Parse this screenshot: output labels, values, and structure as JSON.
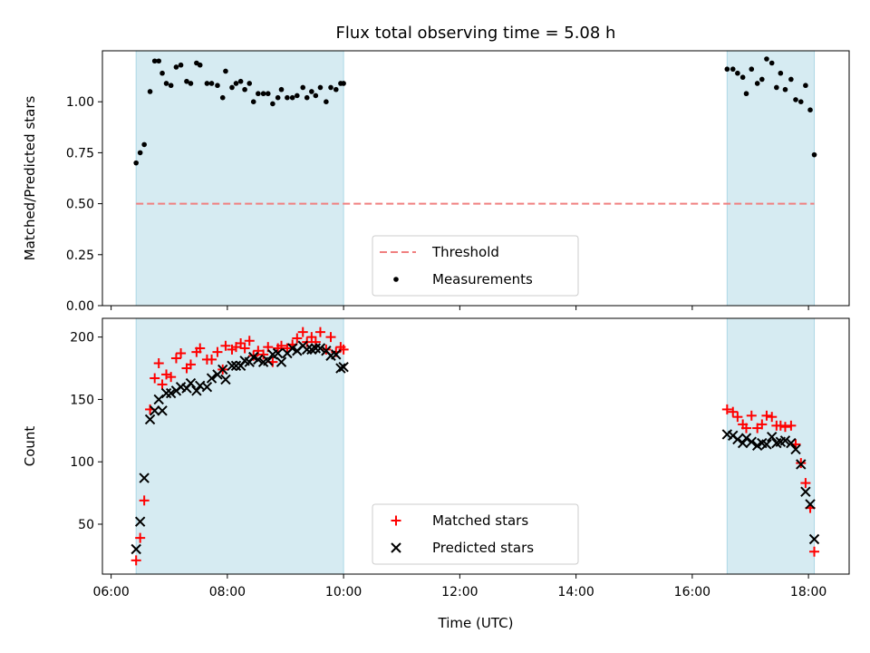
{
  "chart_data": {
    "title": "Flux total observing time = 5.08 h",
    "xlabel": "Time (UTC)",
    "x_tick_labels": [
      "06:00",
      "08:00",
      "10:00",
      "12:00",
      "14:00",
      "16:00",
      "18:00"
    ],
    "x_ticks_hours": [
      6,
      8,
      10,
      12,
      14,
      16,
      18
    ],
    "xlim_hours": [
      5.85,
      18.7
    ],
    "observing_windows_hours": [
      [
        6.43,
        10.0
      ],
      [
        16.6,
        18.1
      ]
    ],
    "window_color": "#add8e6",
    "panels": [
      {
        "type": "scatter",
        "ylabel": "Matched/Predicted stars",
        "ylim": [
          0,
          1.25
        ],
        "yticks": [
          0.0,
          0.25,
          0.5,
          0.75,
          1.0
        ],
        "y_tick_labels": [
          "0.00",
          "0.25",
          "0.50",
          "0.75",
          "1.00"
        ],
        "legend": {
          "placement": "lower-center",
          "entries": [
            "Threshold",
            "Measurements"
          ]
        },
        "threshold": {
          "name": "Threshold",
          "value": 0.5,
          "color": "#f08080"
        },
        "series": [
          {
            "name": "Measurements",
            "marker": "dot",
            "color": "#000000",
            "x_hours": [
              6.43,
              6.5,
              6.57,
              6.67,
              6.75,
              6.82,
              6.88,
              6.95,
              7.03,
              7.12,
              7.2,
              7.3,
              7.37,
              7.47,
              7.53,
              7.65,
              7.73,
              7.83,
              7.92,
              7.97,
              8.08,
              8.15,
              8.23,
              8.3,
              8.38,
              8.45,
              8.53,
              8.62,
              8.7,
              8.78,
              8.87,
              8.93,
              9.03,
              9.12,
              9.2,
              9.3,
              9.37,
              9.45,
              9.52,
              9.6,
              9.7,
              9.78,
              9.87,
              9.95,
              10.0,
              16.6,
              16.7,
              16.78,
              16.87,
              16.93,
              17.02,
              17.12,
              17.2,
              17.28,
              17.37,
              17.45,
              17.52,
              17.6,
              17.7,
              17.78,
              17.87,
              17.95,
              18.03,
              18.1
            ],
            "y": [
              0.7,
              0.75,
              0.79,
              1.05,
              1.2,
              1.2,
              1.14,
              1.09,
              1.08,
              1.17,
              1.18,
              1.1,
              1.09,
              1.19,
              1.18,
              1.09,
              1.09,
              1.08,
              1.02,
              1.15,
              1.07,
              1.09,
              1.1,
              1.06,
              1.09,
              1.0,
              1.04,
              1.04,
              1.04,
              0.99,
              1.02,
              1.06,
              1.02,
              1.02,
              1.03,
              1.07,
              1.02,
              1.05,
              1.03,
              1.07,
              1.0,
              1.07,
              1.06,
              1.09,
              1.09,
              1.16,
              1.16,
              1.14,
              1.12,
              1.04,
              1.16,
              1.09,
              1.11,
              1.21,
              1.19,
              1.07,
              1.14,
              1.06,
              1.11,
              1.01,
              1.0,
              1.08,
              0.96,
              0.74
            ]
          }
        ]
      },
      {
        "type": "scatter",
        "ylabel": "Count",
        "ylim": [
          10,
          215
        ],
        "yticks": [
          50,
          100,
          150,
          200
        ],
        "y_tick_labels": [
          "50",
          "100",
          "150",
          "200"
        ],
        "legend": {
          "placement": "lower-center",
          "entries": [
            "Matched stars",
            "Predicted stars"
          ]
        },
        "series": [
          {
            "name": "Matched stars",
            "marker": "plus",
            "color": "#ff0000",
            "x_hours": [
              6.43,
              6.5,
              6.57,
              6.67,
              6.75,
              6.82,
              6.88,
              6.95,
              7.03,
              7.12,
              7.2,
              7.3,
              7.37,
              7.47,
              7.53,
              7.65,
              7.73,
              7.83,
              7.92,
              7.97,
              8.08,
              8.15,
              8.23,
              8.3,
              8.38,
              8.45,
              8.53,
              8.62,
              8.7,
              8.78,
              8.87,
              8.93,
              9.03,
              9.12,
              9.2,
              9.3,
              9.37,
              9.45,
              9.52,
              9.6,
              9.7,
              9.78,
              9.87,
              9.95,
              10.0,
              16.6,
              16.7,
              16.78,
              16.87,
              16.93,
              17.02,
              17.12,
              17.2,
              17.28,
              17.37,
              17.45,
              17.52,
              17.6,
              17.7,
              17.78,
              17.87,
              17.95,
              18.03,
              18.1
            ],
            "y": [
              21,
              39,
              69,
              142,
              167,
              179,
              162,
              170,
              168,
              183,
              187,
              175,
              178,
              188,
              191,
              182,
              182,
              188,
              174,
              193,
              190,
              192,
              195,
              191,
              197,
              185,
              189,
              186,
              192,
              180,
              191,
              193,
              191,
              194,
              199,
              204,
              196,
              200,
              196,
              204,
              190,
              200,
              188,
              192,
              190,
              142,
              140,
              136,
              130,
              127,
              137,
              127,
              130,
              137,
              136,
              129,
              129,
              128,
              129,
              114,
              99,
              83,
              63,
              28
            ]
          },
          {
            "name": "Predicted stars",
            "marker": "x",
            "color": "#000000",
            "x_hours": [
              6.43,
              6.5,
              6.57,
              6.67,
              6.75,
              6.82,
              6.88,
              6.95,
              7.03,
              7.12,
              7.2,
              7.3,
              7.37,
              7.47,
              7.53,
              7.65,
              7.73,
              7.83,
              7.92,
              7.97,
              8.08,
              8.15,
              8.23,
              8.3,
              8.38,
              8.45,
              8.53,
              8.62,
              8.7,
              8.78,
              8.87,
              8.93,
              9.03,
              9.12,
              9.2,
              9.3,
              9.37,
              9.45,
              9.52,
              9.6,
              9.7,
              9.78,
              9.87,
              9.95,
              10.0,
              16.6,
              16.7,
              16.78,
              16.87,
              16.93,
              17.02,
              17.12,
              17.2,
              17.28,
              17.37,
              17.45,
              17.52,
              17.6,
              17.7,
              17.78,
              17.87,
              17.95,
              18.03,
              18.1
            ],
            "y": [
              30,
              52,
              87,
              134,
              141,
              150,
              141,
              155,
              155,
              157,
              160,
              159,
              163,
              157,
              161,
              160,
              167,
              170,
              174,
              166,
              177,
              177,
              177,
              181,
              180,
              184,
              182,
              180,
              181,
              186,
              187,
              180,
              187,
              191,
              189,
              193,
              190,
              190,
              191,
              191,
              189,
              185,
              186,
              175,
              176,
              122,
              121,
              118,
              115,
              119,
              116,
              113,
              115,
              114,
              120,
              115,
              116,
              117,
              115,
              110,
              98,
              76,
              66,
              38
            ]
          }
        ]
      }
    ]
  }
}
